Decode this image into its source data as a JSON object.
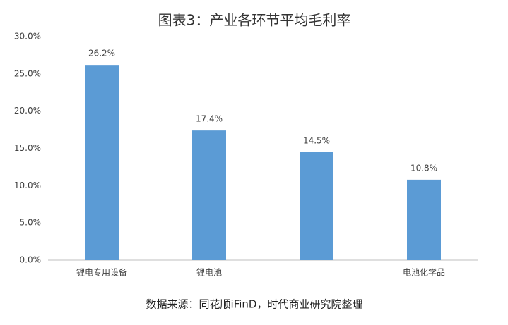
{
  "chart_data": {
    "type": "bar",
    "title": "图表3：产业各环节平均毛利率",
    "categories": [
      "锂电专用设备",
      "锂电池",
      null,
      "电池化学品"
    ],
    "values": [
      26.2,
      17.4,
      14.5,
      10.8
    ],
    "value_labels": [
      "26.2%",
      "17.4%",
      "14.5%",
      "10.8%"
    ],
    "color": "#5b9bd5",
    "ylim": [
      0,
      30
    ],
    "yticks": [
      {
        "value": 0,
        "label": "0.0%"
      },
      {
        "value": 5,
        "label": "5.0%"
      },
      {
        "value": 10,
        "label": "10.0%"
      },
      {
        "value": 15,
        "label": "15.0%"
      },
      {
        "value": 20,
        "label": "20.0%"
      },
      {
        "value": 25,
        "label": "25.0%"
      },
      {
        "value": 30,
        "label": "30.0%"
      }
    ],
    "grid": false,
    "source": "数据来源：同花顺iFinD，时代商业研究院整理"
  }
}
